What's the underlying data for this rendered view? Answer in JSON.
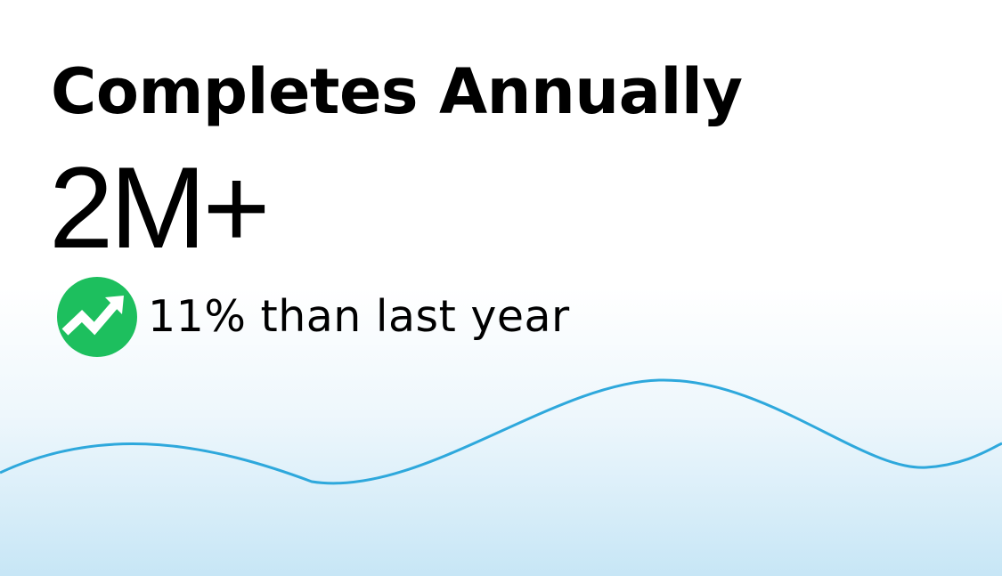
{
  "card": {
    "title": "Completes Annually",
    "metric": "2M+",
    "trend": {
      "text": "11% than last year",
      "icon": "trending-up-icon",
      "icon_color": "#1dbf5e",
      "direction": "up"
    }
  },
  "colors": {
    "wave_line": "#2ea8dc",
    "background_bottom": "#c7e6f6",
    "background_top": "#ffffff"
  }
}
